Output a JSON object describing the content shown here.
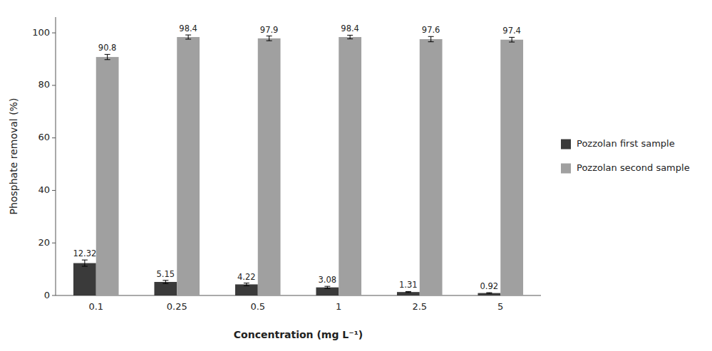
{
  "chart_data": {
    "type": "bar",
    "categories": [
      "0.1",
      "0.25",
      "0.5",
      "1",
      "2.5",
      "5"
    ],
    "series": [
      {
        "name": "Pozzolan first sample",
        "color": "#3a3a3a",
        "values": [
          12.32,
          5.15,
          4.22,
          3.08,
          1.31,
          0.92
        ],
        "errors": [
          1.2,
          0.6,
          0.5,
          0.4,
          0.2,
          0.15
        ]
      },
      {
        "name": "Pozzolan second sample",
        "color": "#a0a0a0",
        "values": [
          90.8,
          98.4,
          97.9,
          98.4,
          97.6,
          97.4
        ],
        "errors": [
          1.0,
          0.8,
          0.9,
          0.7,
          1.0,
          0.9
        ]
      }
    ],
    "x_label": "Concentration (mg L⁻¹)",
    "y_label": "Phosphate removal (%)",
    "ylim": [
      0,
      106
    ],
    "yticks": [
      0,
      20,
      40,
      60,
      80,
      100
    ],
    "grid": false,
    "legend": "right",
    "data_labels": true
  }
}
